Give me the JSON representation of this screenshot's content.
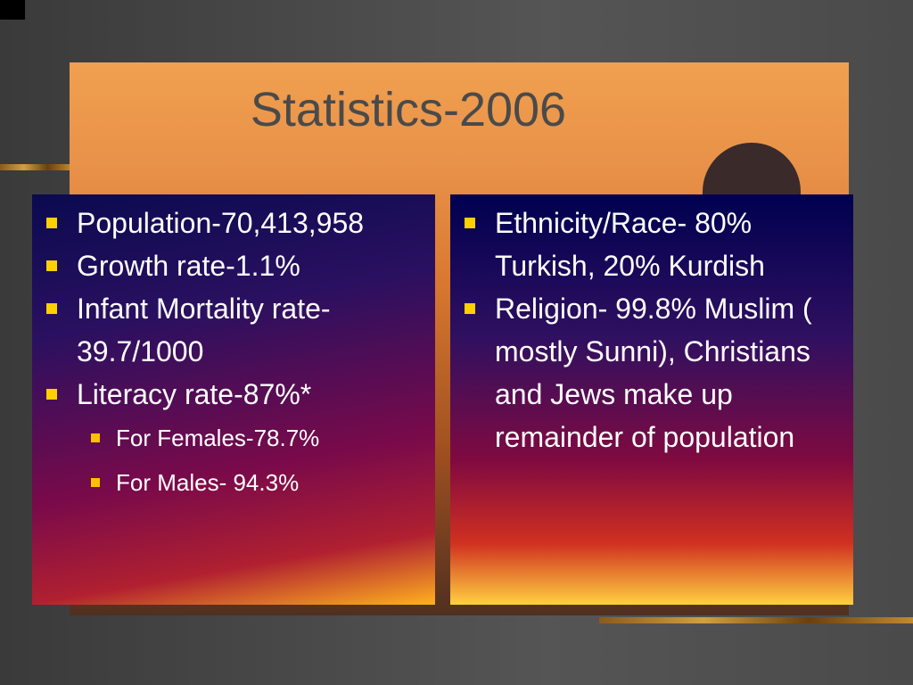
{
  "title": "Statistics-2006",
  "left_list": {
    "items": [
      {
        "text": "Population-70,413,958"
      },
      {
        "text": "Growth rate-1.1%"
      },
      {
        "text": "Infant Mortality rate-39.7/1000"
      },
      {
        "text": "Literacy rate-87%*",
        "subitems": [
          "For Females-78.7%",
          "For Males- 94.3%"
        ]
      }
    ]
  },
  "right_list": {
    "items": [
      {
        "text": "Ethnicity/Race- 80% Turkish, 20% Kurdish"
      },
      {
        "text": "Religion- 99.8% Muslim ( mostly Sunni), Christians and Jews make up remainder of population"
      }
    ]
  }
}
